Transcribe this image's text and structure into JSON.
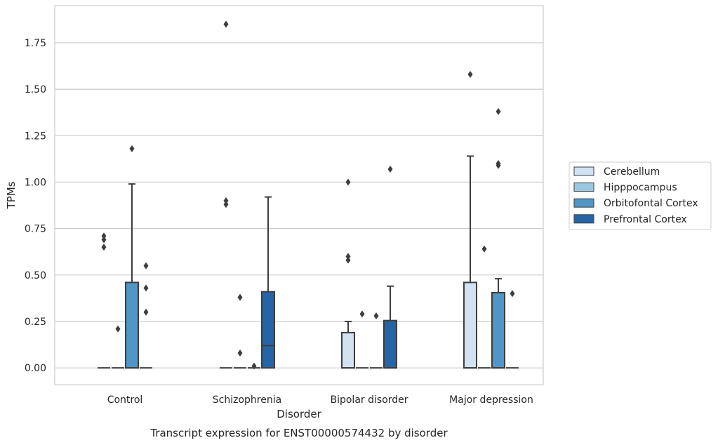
{
  "chart_data": {
    "type": "box",
    "title": "",
    "caption": "Transcript expression for ENST00000574432 by disorder",
    "xlabel": "Disorder",
    "ylabel": "TPMs",
    "ylim": [
      -0.09,
      1.95
    ],
    "yticks": [
      "0.00",
      "0.25",
      "0.50",
      "0.75",
      "1.00",
      "1.25",
      "1.50",
      "1.75"
    ],
    "ytick_values": [
      0,
      0.25,
      0.5,
      0.75,
      1.0,
      1.25,
      1.5,
      1.75
    ],
    "grid": "horizontal",
    "legend_placement": "right",
    "categories": [
      "Control",
      "Schizophrenia",
      "Bipolar disorder",
      "Major depression"
    ],
    "series": [
      {
        "name": "Cerebellum",
        "color": "#d1e2f2",
        "boxes": [
          {
            "q1": 0,
            "median": 0,
            "q3": 0,
            "whisker_low": 0,
            "whisker_high": 0,
            "outliers": [
              0.65,
              0.69,
              0.71
            ]
          },
          {
            "q1": 0,
            "median": 0,
            "q3": 0,
            "whisker_low": 0,
            "whisker_high": 0,
            "outliers": [
              1.85,
              0.88,
              0.9
            ]
          },
          {
            "q1": 0,
            "median": 0,
            "q3": 0.19,
            "whisker_low": 0,
            "whisker_high": 0.25,
            "outliers": [
              1.0,
              0.58,
              0.6
            ]
          },
          {
            "q1": 0,
            "median": 0,
            "q3": 0.46,
            "whisker_low": 0,
            "whisker_high": 1.14,
            "outliers": [
              1.58
            ]
          }
        ]
      },
      {
        "name": "Hipppocampus",
        "color": "#9ac8e0",
        "boxes": [
          {
            "q1": 0,
            "median": 0,
            "q3": 0,
            "whisker_low": 0,
            "whisker_high": 0,
            "outliers": [
              0.21
            ]
          },
          {
            "q1": 0,
            "median": 0,
            "q3": 0,
            "whisker_low": 0,
            "whisker_high": 0,
            "outliers": [
              0.38,
              0.08
            ]
          },
          {
            "q1": 0,
            "median": 0,
            "q3": 0,
            "whisker_low": 0,
            "whisker_high": 0,
            "outliers": [
              0.29
            ]
          },
          {
            "q1": 0,
            "median": 0,
            "q3": 0,
            "whisker_low": 0,
            "whisker_high": 0,
            "outliers": [
              0.64
            ]
          }
        ]
      },
      {
        "name": "Orbitofontal Cortex",
        "color": "#5096c7",
        "boxes": [
          {
            "q1": 0,
            "median": 0,
            "q3": 0.46,
            "whisker_low": 0,
            "whisker_high": 0.99,
            "outliers": [
              1.18
            ]
          },
          {
            "q1": 0,
            "median": 0,
            "q3": 0,
            "whisker_low": 0,
            "whisker_high": 0,
            "outliers": [
              0.01
            ]
          },
          {
            "q1": 0,
            "median": 0,
            "q3": 0,
            "whisker_low": 0,
            "whisker_high": 0,
            "outliers": [
              0.28
            ]
          },
          {
            "q1": 0,
            "median": 0,
            "q3": 0.405,
            "whisker_low": 0,
            "whisker_high": 0.48,
            "outliers": [
              1.38,
              1.09,
              1.1
            ]
          }
        ]
      },
      {
        "name": "Prefrontal Cortex",
        "color": "#2565a6",
        "boxes": [
          {
            "q1": 0,
            "median": 0,
            "q3": 0,
            "whisker_low": 0,
            "whisker_high": 0,
            "outliers": [
              0.55,
              0.43,
              0.3
            ]
          },
          {
            "q1": 0,
            "median": 0.12,
            "q3": 0.41,
            "whisker_low": 0,
            "whisker_high": 0.92,
            "outliers": []
          },
          {
            "q1": 0,
            "median": 0,
            "q3": 0.255,
            "whisker_low": 0,
            "whisker_high": 0.44,
            "outliers": [
              1.07
            ]
          },
          {
            "q1": 0,
            "median": 0,
            "q3": 0,
            "whisker_low": 0,
            "whisker_high": 0,
            "outliers": [
              0.4
            ]
          }
        ]
      }
    ]
  }
}
